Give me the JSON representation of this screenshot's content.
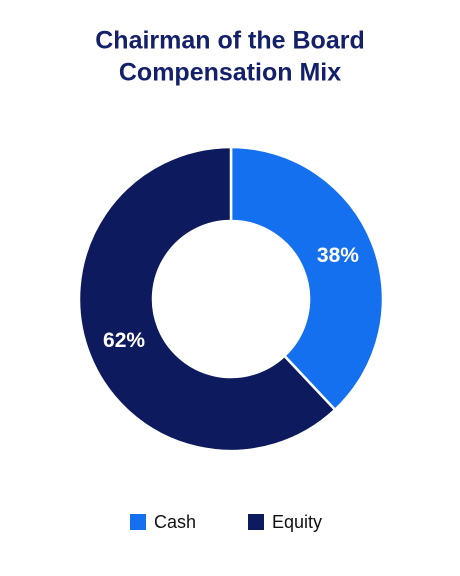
{
  "chart_data": {
    "type": "donut",
    "title": [
      "Chairman of the Board",
      "Compensation Mix"
    ],
    "categories": [
      "Cash",
      "Equity"
    ],
    "values": [
      38,
      62
    ],
    "value_labels": [
      "38%",
      "62%"
    ],
    "colors": [
      "#1570f0",
      "#0d1a5e"
    ],
    "legend": "bottom"
  }
}
